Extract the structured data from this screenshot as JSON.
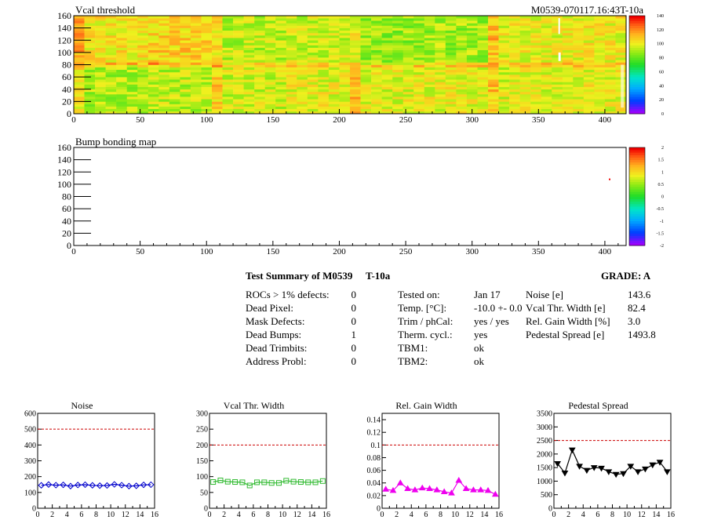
{
  "maps": [
    {
      "title": "Vcal threshold",
      "id_label": "M0539-070117.16:43T-10a",
      "x_ticks": [
        "0",
        "50",
        "100",
        "150",
        "200",
        "250",
        "300",
        "350",
        "400"
      ],
      "y_ticks": [
        "0",
        "20",
        "40",
        "60",
        "80",
        "100",
        "120",
        "140",
        "160"
      ],
      "palette_ticks": [
        "0",
        "20",
        "40",
        "60",
        "80",
        "100",
        "120",
        "140"
      ]
    },
    {
      "title": "Bump bonding map",
      "x_ticks": [
        "0",
        "50",
        "100",
        "150",
        "200",
        "250",
        "300",
        "350",
        "400"
      ],
      "y_ticks": [
        "0",
        "20",
        "40",
        "60",
        "80",
        "100",
        "120",
        "140",
        "160"
      ],
      "palette_ticks": [
        "-2",
        "-1.5",
        "-1",
        "-0.5",
        "0",
        "0.5",
        "1",
        "1.5",
        "2"
      ]
    }
  ],
  "summary": {
    "title": "Test Summary of M0539",
    "temp_tag": "T-10a",
    "grade": "GRADE:  A",
    "defects": [
      {
        "label": "ROCs > 1% defects:",
        "value": "0"
      },
      {
        "label": "Dead Pixel:",
        "value": "0"
      },
      {
        "label": "Mask Defects:",
        "value": "0"
      },
      {
        "label": "Dead Bumps:",
        "value": "1"
      },
      {
        "label": "Dead Trimbits:",
        "value": "0"
      },
      {
        "label": "Address Probl:",
        "value": "0"
      }
    ],
    "conditions": [
      {
        "label": "Tested on:",
        "value": "Jan 17"
      },
      {
        "label": "Temp. [°C]:",
        "value": "-10.0 +- 0.0"
      },
      {
        "label": "Trim / phCal:",
        "value": "yes / yes"
      },
      {
        "label": "Therm. cycl.:",
        "value": "yes"
      },
      {
        "label": "TBM1:",
        "value": "ok"
      },
      {
        "label": "TBM2:",
        "value": "ok"
      }
    ],
    "results": [
      {
        "label": "Noise [e]",
        "value": "143.6"
      },
      {
        "label": "Vcal Thr. Width [e]",
        "value": "82.4"
      },
      {
        "label": "Rel. Gain Width [%]",
        "value": "3.0"
      },
      {
        "label": "Pedestal Spread [e]",
        "value": "1493.8"
      }
    ]
  },
  "colors": {
    "noise": "#0000cc",
    "vcal": "#33bb33",
    "gain": "#ee00ee",
    "pedestal": "#000000",
    "limit": "#cc0000"
  },
  "chart_data": [
    {
      "type": "heatmap",
      "title": "Vcal threshold",
      "xlim": [
        0,
        416
      ],
      "ylim": [
        0,
        160
      ],
      "z_range": [
        0,
        140
      ],
      "description_values": "16 ROC blocks (52x80 pixels each), thresholds mostly 70-120"
    },
    {
      "type": "heatmap",
      "title": "Bump bonding map",
      "xlim": [
        0,
        416
      ],
      "ylim": [
        0,
        160
      ],
      "z_range": [
        -2,
        2
      ],
      "points": [
        {
          "x": 403,
          "y": 108,
          "z": 2
        }
      ]
    },
    {
      "type": "line",
      "title": "Noise",
      "marker": "diamond",
      "x": [
        0,
        1,
        2,
        3,
        4,
        5,
        6,
        7,
        8,
        9,
        10,
        11,
        12,
        13,
        14,
        15
      ],
      "values": [
        145,
        150,
        146,
        148,
        140,
        147,
        149,
        145,
        143,
        144,
        151,
        146,
        140,
        142,
        148,
        149
      ],
      "ylim": [
        0,
        600
      ],
      "y_ticks": [
        "0",
        "100",
        "200",
        "300",
        "400",
        "500",
        "600"
      ],
      "x_ticks": [
        "0",
        "2",
        "4",
        "6",
        "8",
        "10",
        "12",
        "14",
        "16"
      ],
      "xlim": [
        0,
        16
      ],
      "limit": 500
    },
    {
      "type": "line",
      "title": "Vcal Thr. Width",
      "marker": "square",
      "x": [
        0,
        1,
        2,
        3,
        4,
        5,
        6,
        7,
        8,
        9,
        10,
        11,
        12,
        13,
        14,
        15
      ],
      "values": [
        83,
        88,
        84,
        83,
        82,
        72,
        82,
        82,
        80,
        80,
        87,
        84,
        83,
        82,
        82,
        86
      ],
      "ylim": [
        0,
        300
      ],
      "y_ticks": [
        "0",
        "50",
        "100",
        "150",
        "200",
        "250",
        "300"
      ],
      "x_ticks": [
        "0",
        "2",
        "4",
        "6",
        "8",
        "10",
        "12",
        "14",
        "16"
      ],
      "xlim": [
        0,
        16
      ],
      "limit": 200
    },
    {
      "type": "line",
      "title": "Rel. Gain Width",
      "marker": "triangle-up",
      "x": [
        0,
        1,
        2,
        3,
        4,
        5,
        6,
        7,
        8,
        9,
        10,
        11,
        12,
        13,
        14,
        15
      ],
      "values": [
        0.03,
        0.028,
        0.04,
        0.031,
        0.029,
        0.032,
        0.031,
        0.029,
        0.026,
        0.024,
        0.044,
        0.031,
        0.029,
        0.029,
        0.028,
        0.022
      ],
      "ylim": [
        0,
        0.15
      ],
      "y_ticks": [
        "0",
        "0.02",
        "0.04",
        "0.06",
        "0.08",
        "0.1",
        "0.12",
        "0.14"
      ],
      "x_ticks": [
        "0",
        "2",
        "4",
        "6",
        "8",
        "10",
        "12",
        "14",
        "16"
      ],
      "xlim": [
        0,
        16
      ],
      "limit": 0.1
    },
    {
      "type": "line",
      "title": "Pedestal Spread",
      "marker": "triangle-down",
      "x": [
        0,
        1,
        2,
        3,
        4,
        5,
        6,
        7,
        8,
        9,
        10,
        11,
        12,
        13,
        14,
        15
      ],
      "values": [
        1650,
        1300,
        2150,
        1550,
        1400,
        1500,
        1480,
        1350,
        1250,
        1280,
        1550,
        1350,
        1450,
        1600,
        1700,
        1350
      ],
      "ylim": [
        0,
        3500
      ],
      "y_ticks": [
        "0",
        "500",
        "1000",
        "1500",
        "2000",
        "2500",
        "3000",
        "3500"
      ],
      "x_ticks": [
        "0",
        "2",
        "4",
        "6",
        "8",
        "10",
        "12",
        "14",
        "16"
      ],
      "xlim": [
        0,
        16
      ],
      "limit": 2500
    }
  ]
}
